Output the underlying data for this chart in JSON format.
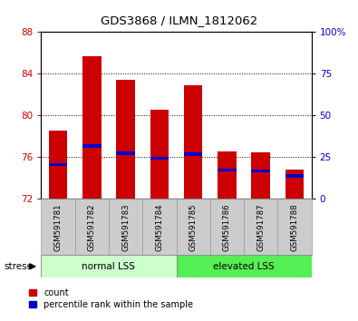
{
  "title": "GDS3868 / ILMN_1812062",
  "categories": [
    "GSM591781",
    "GSM591782",
    "GSM591783",
    "GSM591784",
    "GSM591785",
    "GSM591786",
    "GSM591787",
    "GSM591788"
  ],
  "bar_bottoms": [
    72,
    72,
    72,
    72,
    72,
    72,
    72,
    72
  ],
  "bar_tops": [
    78.6,
    85.7,
    83.4,
    80.6,
    82.9,
    76.6,
    76.5,
    74.8
  ],
  "percentile_values": [
    75.3,
    77.1,
    76.4,
    75.9,
    76.3,
    74.8,
    74.7,
    74.2
  ],
  "ylim_left": [
    72,
    88
  ],
  "ylim_right": [
    0,
    100
  ],
  "yticks_left": [
    72,
    76,
    80,
    84,
    88
  ],
  "yticks_right": [
    0,
    25,
    50,
    75,
    100
  ],
  "ytick_right_labels": [
    "0",
    "25",
    "50",
    "75",
    "100%"
  ],
  "bar_color": "#cc0000",
  "percentile_color": "#0000cc",
  "group1_label": "normal LSS",
  "group2_label": "elevated LSS",
  "group1_color": "#ccffcc",
  "group2_color": "#55ee55",
  "stress_label": "stress",
  "legend_count": "count",
  "legend_percentile": "percentile rank within the sample",
  "tick_color_left": "#cc0000",
  "tick_color_right": "#0000cc",
  "xticklabel_bg": "#cccccc",
  "bar_width": 0.55
}
